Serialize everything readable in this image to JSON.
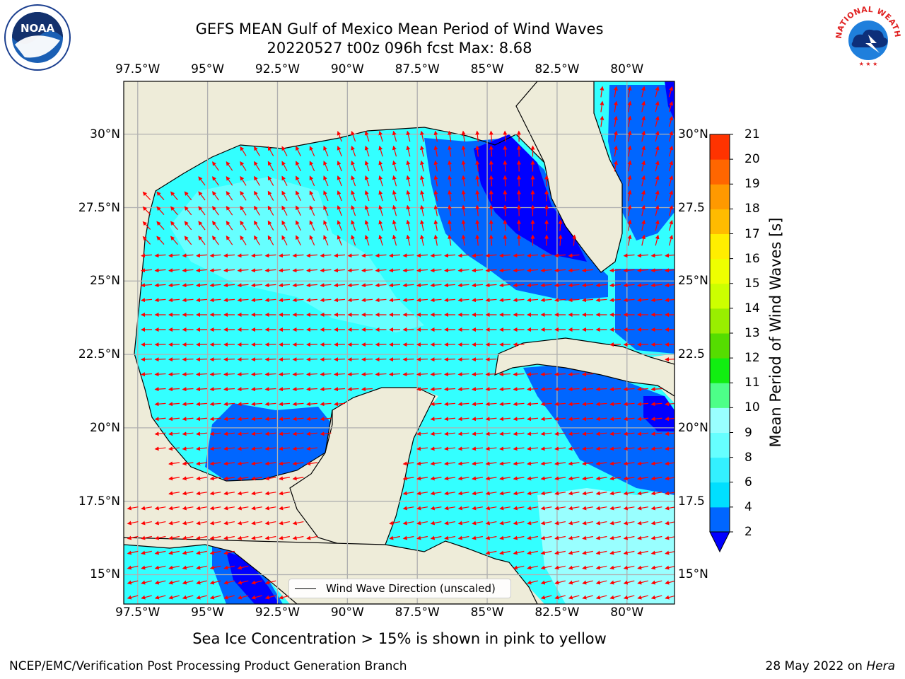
{
  "title_line1": "GEFS MEAN Gulf of Mexico Mean Period of Wind Waves",
  "title_line2": "20220527 t00z 096h fcst   Max: 8.68",
  "lon_labels": [
    "97.5°W",
    "95°W",
    "92.5°W",
    "90°W",
    "87.5°W",
    "85°W",
    "82.5°W",
    "80°W"
  ],
  "lat_labels": [
    "30°N",
    "27.5°N",
    "25°N",
    "22.5°N",
    "20°N",
    "17.5°N",
    "15°N"
  ],
  "lat_labels_right": [
    "30°N",
    "27.5",
    "25°N",
    "22.5",
    "20°N",
    "17.5",
    "15°N"
  ],
  "legend_label": "Wind Wave Direction (unscaled)",
  "colorbar": {
    "label": "Mean Period of Wind Waves [s]",
    "ticks": [
      "2",
      "4",
      "6",
      "8",
      "9",
      "10",
      "11",
      "12",
      "13",
      "14",
      "15",
      "16",
      "17",
      "18",
      "19",
      "20",
      "21"
    ],
    "colors": [
      "#0066ff",
      "#00dfff",
      "#33f0ff",
      "#66ffff",
      "#99ffff",
      "#4dff88",
      "#11ee11",
      "#55dd00",
      "#99ee00",
      "#ccff00",
      "#eeff00",
      "#ffee00",
      "#ffbb00",
      "#ff9900",
      "#ff6600",
      "#ff3300",
      "#ff0000"
    ],
    "extend_color": "#0000ff"
  },
  "footnote": "Sea Ice Concentration > 15% is shown in pink to yellow",
  "credit": "NCEP/EMC/Verification Post Processing Product Generation Branch",
  "date_prefix": "28 May 2022 on ",
  "date_machine": "Hera",
  "noaa_logo_text": "NOAA",
  "nws_logo_text": "NATIONAL WEATHER SERVICE",
  "chart_data": {
    "type": "heatmap",
    "title": "GEFS MEAN Gulf of Mexico Mean Period of Wind Waves",
    "subtitle": "20220527 t00z 096h fcst   Max: 8.68",
    "variable": "Mean Period of Wind Waves [s]",
    "max_value": 8.68,
    "x_range": [
      -98.0,
      -78.3
    ],
    "y_range": [
      14.0,
      31.8
    ],
    "x_ticks": [
      -97.5,
      -95,
      -92.5,
      -90,
      -87.5,
      -85,
      -82.5,
      -80
    ],
    "y_ticks": [
      15,
      17.5,
      20,
      22.5,
      25,
      27.5,
      30
    ],
    "levels": [
      2,
      4,
      6,
      8,
      9,
      10,
      11,
      12,
      13,
      14,
      15,
      16,
      17,
      18,
      19,
      20,
      21
    ],
    "overlay": "Wind Wave Direction (unscaled) arrows",
    "grid": true,
    "legend_position": "bottom-center"
  },
  "colors": {
    "land": "#eeecd9",
    "grid": "#b0b0b0",
    "arrow": "#ff0000",
    "sea_dark": "#0000ff",
    "sea_mid": "#0066ff",
    "sea_cyan": "#00ffff",
    "sea_light": "#66ffff",
    "sea_pale": "#99ffff"
  }
}
